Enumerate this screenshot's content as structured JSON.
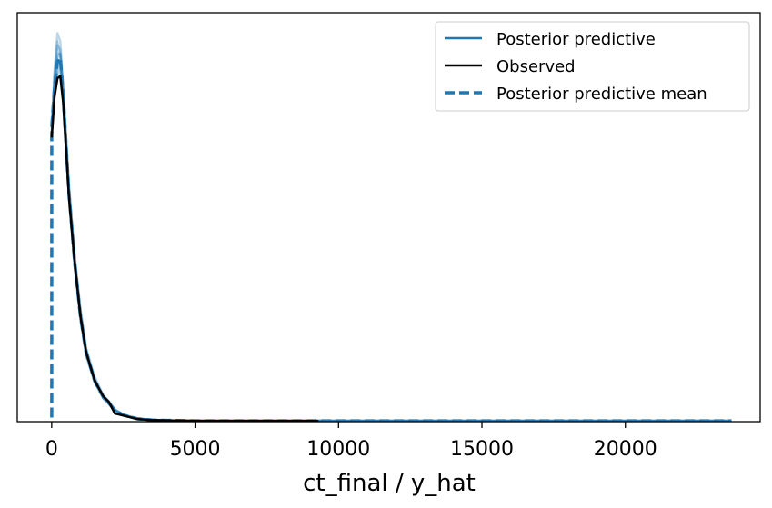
{
  "chart_data": {
    "type": "line",
    "title": "",
    "xlabel": "ct_final / y_hat",
    "ylabel": "",
    "xlim": [
      -1200,
      24700
    ],
    "ylim": [
      0,
      1.0
    ],
    "xticks": [
      0,
      5000,
      10000,
      15000,
      20000
    ],
    "xtick_labels": [
      "0",
      "5000",
      "10000",
      "15000",
      "20000"
    ],
    "yticks_visible": false,
    "grid": false,
    "legend": {
      "placement": "top-right",
      "entries": [
        {
          "label": "Posterior predictive",
          "style": "solid",
          "color": "#1f77b4"
        },
        {
          "label": "Observed",
          "style": "solid",
          "color": "#000000"
        },
        {
          "label": "Posterior predictive mean",
          "style": "dashed",
          "color": "#1f77b4"
        }
      ]
    },
    "colors": {
      "posterior": "#1f77b4",
      "observed": "#000000",
      "mean": "#1f77b4"
    },
    "series": [
      {
        "name": "Observed",
        "style": "solid",
        "color": "#000000",
        "x": [
          0,
          100,
          200,
          300,
          400,
          500,
          600,
          800,
          1000,
          1200,
          1500,
          1800,
          2000,
          2200,
          2500,
          3000,
          3500,
          4000,
          5000,
          6000,
          7000,
          8000,
          9000,
          9300
        ],
        "y": [
          0.695,
          0.795,
          0.84,
          0.845,
          0.78,
          0.67,
          0.55,
          0.39,
          0.26,
          0.17,
          0.1,
          0.062,
          0.048,
          0.02,
          0.015,
          0.006,
          0.004,
          0.003,
          0.002,
          0.002,
          0.002,
          0.002,
          0.002,
          0.002
        ]
      },
      {
        "name": "Posterior predictive mean",
        "style": "dashed",
        "color": "#1f77b4",
        "x": [
          0,
          0,
          100,
          200,
          300,
          400,
          500,
          600,
          800,
          1000,
          1200,
          1500,
          1800,
          2000,
          2200,
          2500,
          3000,
          3500,
          4000,
          5000,
          7000,
          10000,
          15000,
          20000,
          23700
        ],
        "y": [
          0.01,
          0.72,
          0.82,
          0.88,
          0.89,
          0.8,
          0.68,
          0.56,
          0.39,
          0.26,
          0.17,
          0.1,
          0.06,
          0.045,
          0.028,
          0.016,
          0.007,
          0.004,
          0.003,
          0.002,
          0.002,
          0.002,
          0.002,
          0.002,
          0.002
        ]
      }
    ],
    "posterior_draws": {
      "name": "Posterior predictive",
      "color": "#1f77b4",
      "x": [
        0,
        100,
        200,
        300,
        400,
        500,
        600,
        800,
        1000,
        1200,
        1500,
        1800,
        2000,
        2200,
        2500,
        3000,
        3500,
        4000,
        5000,
        7000,
        10000,
        15000,
        20000,
        23700
      ],
      "draws": [
        [
          0.7,
          0.86,
          0.95,
          0.93,
          0.82,
          0.69,
          0.57,
          0.4,
          0.27,
          0.18,
          0.1,
          0.06,
          0.045,
          0.03,
          0.016,
          0.007,
          0.004,
          0.003,
          0.002,
          0.002,
          0.002,
          0.002,
          0.002,
          0.002
        ],
        [
          0.71,
          0.83,
          0.9,
          0.9,
          0.81,
          0.68,
          0.56,
          0.39,
          0.26,
          0.17,
          0.1,
          0.062,
          0.047,
          0.028,
          0.017,
          0.008,
          0.004,
          0.003,
          0.002,
          0.002,
          0.002,
          0.002,
          0.002,
          0.002
        ],
        [
          0.72,
          0.8,
          0.86,
          0.87,
          0.79,
          0.67,
          0.55,
          0.38,
          0.25,
          0.165,
          0.095,
          0.058,
          0.043,
          0.026,
          0.015,
          0.006,
          0.004,
          0.003,
          0.002,
          0.002,
          0.002,
          0.002,
          0.002,
          0.002
        ],
        [
          0.73,
          0.84,
          0.92,
          0.91,
          0.8,
          0.69,
          0.58,
          0.41,
          0.28,
          0.18,
          0.11,
          0.065,
          0.05,
          0.03,
          0.018,
          0.008,
          0.005,
          0.003,
          0.002,
          0.002,
          0.002,
          0.002,
          0.002,
          0.002
        ],
        [
          0.7,
          0.81,
          0.87,
          0.88,
          0.8,
          0.7,
          0.57,
          0.39,
          0.26,
          0.17,
          0.1,
          0.06,
          0.044,
          0.027,
          0.016,
          0.007,
          0.004,
          0.003,
          0.002,
          0.002,
          0.002,
          0.002,
          0.002,
          0.002
        ],
        [
          0.72,
          0.85,
          0.93,
          0.89,
          0.78,
          0.66,
          0.55,
          0.38,
          0.25,
          0.16,
          0.095,
          0.057,
          0.042,
          0.025,
          0.015,
          0.006,
          0.004,
          0.003,
          0.002,
          0.002,
          0.002,
          0.002,
          0.002,
          0.002
        ],
        [
          0.71,
          0.82,
          0.89,
          0.9,
          0.82,
          0.7,
          0.58,
          0.4,
          0.27,
          0.175,
          0.105,
          0.063,
          0.048,
          0.029,
          0.017,
          0.007,
          0.004,
          0.003,
          0.002,
          0.002,
          0.002,
          0.002,
          0.002,
          0.002
        ],
        [
          0.73,
          0.8,
          0.85,
          0.86,
          0.79,
          0.68,
          0.56,
          0.39,
          0.26,
          0.17,
          0.1,
          0.06,
          0.045,
          0.027,
          0.016,
          0.007,
          0.004,
          0.003,
          0.002,
          0.002,
          0.002,
          0.002,
          0.002,
          0.002
        ]
      ]
    }
  }
}
